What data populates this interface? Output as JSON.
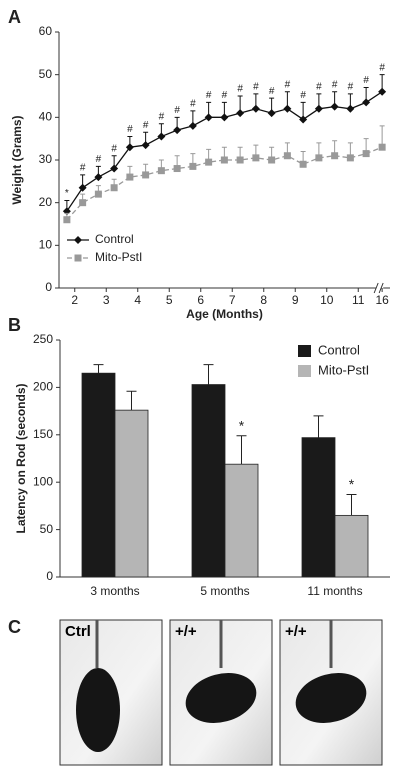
{
  "chart_data": [
    {
      "type": "line",
      "panel_label": "A",
      "xlabel": "Age (Months)",
      "ylabel": "Weight (Grams)",
      "x": [
        1.75,
        2.25,
        2.75,
        3.25,
        3.75,
        4.25,
        4.75,
        5.25,
        5.75,
        6.25,
        6.75,
        7.25,
        7.75,
        8.25,
        8.75,
        9.25,
        9.75,
        10.25,
        10.75,
        11.25,
        16
      ],
      "xlim": [
        1.5,
        16.25
      ],
      "xticks": [
        2,
        3,
        4,
        5,
        6,
        7,
        8,
        9,
        10,
        11,
        16
      ],
      "ylim": [
        0,
        60
      ],
      "yticks": [
        0,
        10,
        20,
        30,
        40,
        50,
        60
      ],
      "legend": "lower left",
      "series": [
        {
          "name": "Control",
          "color": "#111111",
          "marker": "diamond",
          "linestyle": "solid",
          "values": [
            18,
            23.5,
            26,
            28,
            33,
            33.5,
            35.5,
            37,
            38,
            40,
            40,
            41,
            42,
            41,
            42,
            39.5,
            42,
            42.5,
            42,
            43.5,
            46
          ],
          "errors": [
            2.5,
            3,
            2.5,
            3,
            2.5,
            3,
            3,
            3,
            3.5,
            3.5,
            3.5,
            4,
            3.5,
            3.5,
            4,
            4,
            3.5,
            3.5,
            3.5,
            3.5,
            4
          ],
          "annotations": [
            "*",
            "#",
            "#",
            "#",
            "#",
            "#",
            "#",
            "#",
            "#",
            "#",
            "#",
            "#",
            "#",
            "#",
            "#",
            "#",
            "#",
            "#",
            "#",
            "#",
            "#"
          ]
        },
        {
          "name": "Mito-PstI",
          "color": "#999999",
          "marker": "square",
          "linestyle": "dashed",
          "values": [
            16,
            20,
            22,
            23.5,
            26,
            26.5,
            27.5,
            28,
            28.5,
            29.5,
            30,
            30,
            30.5,
            30,
            31,
            29,
            30.5,
            31,
            30.5,
            31.5,
            33
          ],
          "errors": [
            1.5,
            2,
            2,
            2,
            2.5,
            2.5,
            2.5,
            3,
            3,
            3,
            3,
            3,
            3,
            3,
            3,
            3,
            3.5,
            3.5,
            3.5,
            3.5,
            5
          ],
          "annotations": [
            null,
            null,
            null,
            null,
            null,
            null,
            null,
            null,
            null,
            null,
            null,
            null,
            null,
            null,
            null,
            null,
            null,
            null,
            null,
            null,
            null
          ]
        }
      ]
    },
    {
      "type": "bar",
      "panel_label": "B",
      "ylabel": "Latency on Rod (seconds)",
      "categories": [
        "3 months",
        "5 months",
        "11 months"
      ],
      "ylim": [
        0,
        250
      ],
      "yticks": [
        0,
        50,
        100,
        150,
        200,
        250
      ],
      "legend": "upper right",
      "series": [
        {
          "name": "Control",
          "color": "#1a1a1a",
          "values": [
            215,
            203,
            147
          ],
          "errors": [
            9,
            21,
            23
          ],
          "annotations": [
            null,
            null,
            null
          ]
        },
        {
          "name": "Mito-PstI",
          "color": "#b5b5b5",
          "values": [
            176,
            119,
            65
          ],
          "errors": [
            20,
            30,
            22
          ],
          "annotations": [
            null,
            "*",
            "*"
          ]
        }
      ]
    }
  ],
  "panel_c": {
    "label": "C",
    "images": [
      {
        "label": "Ctrl"
      },
      {
        "label": "+/+"
      },
      {
        "label": "+/+"
      }
    ]
  }
}
